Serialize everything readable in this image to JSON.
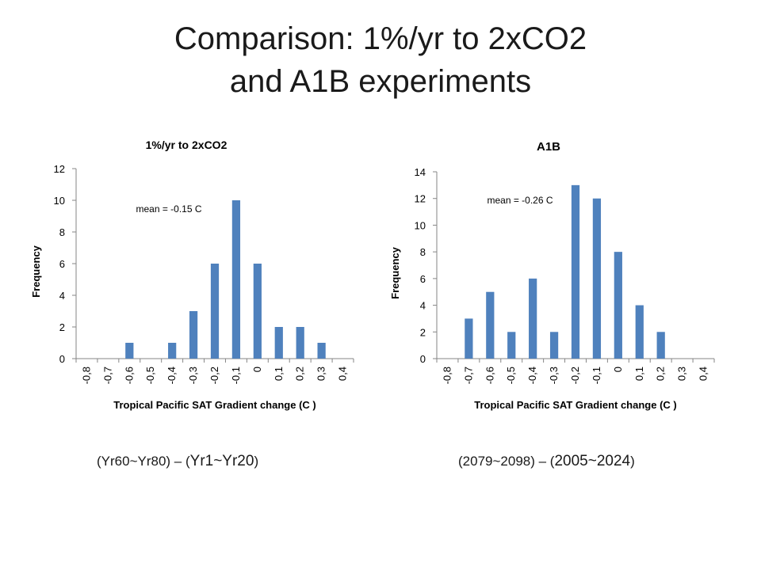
{
  "slide": {
    "title_line1": "Comparison: 1%/yr to 2xCO2",
    "title_line2": "and A1B experiments"
  },
  "captions": {
    "left_small": "(Yr60~Yr80) – (",
    "left_big": "Yr1~Yr20",
    "left_end": ")",
    "right_small": "(2079~2098) – (",
    "right_big": "2005~2024",
    "right_end": ")"
  },
  "chart_data": [
    {
      "type": "bar",
      "title": "1%/yr  to 2xCO2",
      "xlabel": "Tropical Pacific SAT Gradient change (C )",
      "ylabel": "Frequency",
      "categories": [
        "-0,8",
        "-0,7",
        "-0,6",
        "-0,5",
        "-0,4",
        "-0,3",
        "-0,2",
        "-0,1",
        "0",
        "0,1",
        "0,2",
        "0,3",
        "0,4"
      ],
      "values": [
        0,
        0,
        1,
        0,
        1,
        3,
        6,
        10,
        6,
        2,
        2,
        1,
        0
      ],
      "ylim": [
        0,
        12
      ],
      "yticks": [
        0,
        2,
        4,
        6,
        8,
        10,
        12
      ],
      "annotation": "mean = -0.15 C",
      "grid": false,
      "legend": "none",
      "bar_color": "#4F81BD"
    },
    {
      "type": "bar",
      "title": "A1B",
      "xlabel": "Tropical Pacific SAT Gradient change (C )",
      "ylabel": "Frequency",
      "categories": [
        "-0,8",
        "-0,7",
        "-0,6",
        "-0,5",
        "-0,4",
        "-0,3",
        "-0,2",
        "-0,1",
        "0",
        "0,1",
        "0,2",
        "0,3",
        "0,4"
      ],
      "values": [
        0,
        3,
        5,
        2,
        6,
        2,
        13,
        12,
        8,
        4,
        2,
        0,
        0
      ],
      "ylim": [
        0,
        14
      ],
      "yticks": [
        0,
        2,
        4,
        6,
        8,
        10,
        12,
        14
      ],
      "annotation": "mean = -0.26 C",
      "grid": false,
      "legend": "none",
      "bar_color": "#4F81BD"
    }
  ]
}
